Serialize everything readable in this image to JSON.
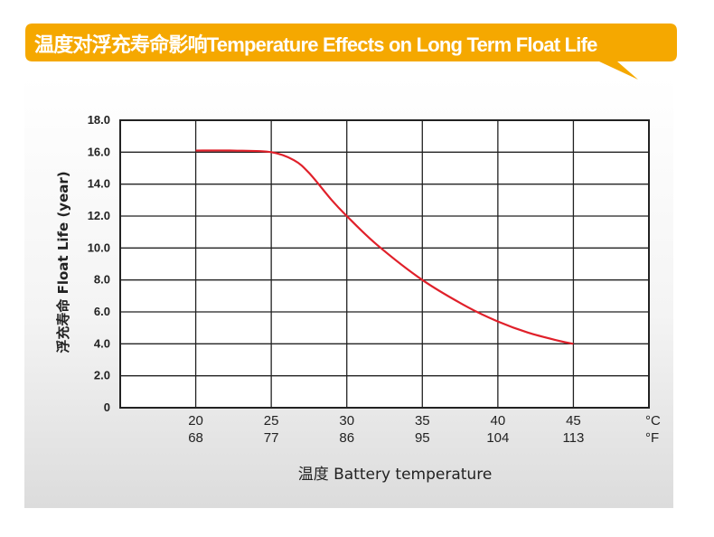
{
  "header": {
    "title": "温度对浮充寿命影响Temperature Effects on Long Term Float Life",
    "banner_color": "#f5a800"
  },
  "chart_data": {
    "type": "line",
    "title": "温度对浮充寿命影响Temperature Effects on Long Term Float Life",
    "ylabel": "浮充寿命  Float Life (year)",
    "xlabel": "温度  Battery temperature",
    "x_unit_celsius": "°C",
    "x_unit_fahrenheit": "°F",
    "x_ticks_celsius": [
      "20",
      "25",
      "30",
      "35",
      "40",
      "45"
    ],
    "x_ticks_fahrenheit": [
      "68",
      "77",
      "86",
      "95",
      "104",
      "113"
    ],
    "y_ticks": [
      "0",
      "2.0",
      "4.0",
      "6.0",
      "8.0",
      "10.0",
      "12.0",
      "14.0",
      "16.0",
      "18.0"
    ],
    "xlim": [
      15,
      50
    ],
    "ylim": [
      0,
      18
    ],
    "grid": true,
    "line_color": "#e0202a",
    "series": [
      {
        "x": [
          20,
          22.5,
          25,
          26.5,
          27.5,
          29,
          30,
          32,
          35,
          38,
          40,
          42,
          44,
          45
        ],
        "values": [
          16.1,
          16.1,
          16.0,
          15.5,
          14.7,
          13.0,
          12.0,
          10.2,
          8.0,
          6.3,
          5.4,
          4.7,
          4.2,
          4.0
        ]
      }
    ]
  }
}
